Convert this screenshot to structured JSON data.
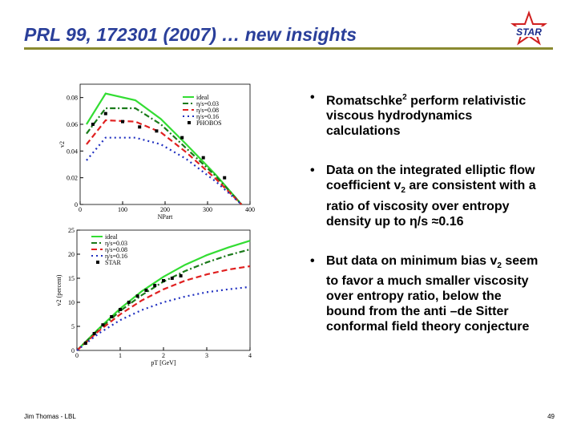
{
  "header": {
    "title": "PRL 99, 172301 (2007) … new insights",
    "logo": "STAR"
  },
  "bullets": [
    [
      "Romatschke",
      "2",
      " perform relativistic viscous hydrodynamics calculations"
    ],
    [
      "Data on the integrated elliptic flow coefficient v",
      "2",
      " are consistent with a ratio of viscosity over entropy density up to η/s ≈0.16"
    ],
    [
      "But data on minimum bias v",
      "2",
      " seem to favor a much smaller viscosity over entropy ratio, below the bound from the anti –de Sitter conformal field theory conjecture"
    ]
  ],
  "footer": {
    "author": "Jim Thomas - LBL",
    "page": "49"
  },
  "chart_data": [
    {
      "type": "line",
      "xlabel": "NPart",
      "ylabel": "v2",
      "x": [
        15,
        60,
        130,
        190,
        250,
        320,
        380
      ],
      "xlim": [
        0,
        400
      ],
      "ylim": [
        0,
        0.09
      ],
      "xticks": [
        0,
        100,
        200,
        300,
        400
      ],
      "yticks": [
        0,
        0.02,
        0.04,
        0.06,
        0.08
      ],
      "series": [
        {
          "name": "ideal",
          "color": "#33dd33",
          "style": "solid",
          "values": [
            0.06,
            0.083,
            0.078,
            0.064,
            0.045,
            0.022,
            0
          ]
        },
        {
          "name": "η/s=0.03",
          "color": "#1a7a1a",
          "style": "dashdot",
          "values": [
            0.053,
            0.072,
            0.072,
            0.06,
            0.042,
            0.021,
            0
          ]
        },
        {
          "name": "η/s=0.08",
          "color": "#e02020",
          "style": "dashed",
          "values": [
            0.045,
            0.063,
            0.062,
            0.054,
            0.039,
            0.019,
            0
          ]
        },
        {
          "name": "η/s=0.16",
          "color": "#2030c0",
          "style": "dotted",
          "values": [
            0.033,
            0.05,
            0.05,
            0.045,
            0.034,
            0.017,
            0
          ]
        },
        {
          "name": "PHOBOS",
          "color": "#000000",
          "style": "points",
          "x": [
            30,
            60,
            100,
            140,
            180,
            240,
            290,
            340
          ],
          "values": [
            0.06,
            0.068,
            0.062,
            0.058,
            0.055,
            0.05,
            0.035,
            0.02
          ]
        }
      ]
    },
    {
      "type": "line",
      "xlabel": "pT [GeV]",
      "ylabel": "v2 (percent)",
      "x": [
        0,
        0.5,
        1,
        1.5,
        2,
        2.5,
        3,
        3.5,
        4
      ],
      "xlim": [
        0,
        4
      ],
      "ylim": [
        0,
        25
      ],
      "xticks": [
        0,
        1,
        2,
        3,
        4
      ],
      "yticks": [
        0,
        5,
        10,
        15,
        20,
        25
      ],
      "series": [
        {
          "name": "ideal",
          "color": "#33dd33",
          "style": "solid",
          "values": [
            0,
            4.5,
            8.7,
            12.3,
            15.3,
            17.8,
            19.8,
            21.4,
            22.8
          ]
        },
        {
          "name": "η/s=0.03",
          "color": "#1a7a1a",
          "style": "dashdot",
          "values": [
            0,
            4.3,
            8.2,
            11.5,
            14.3,
            16.5,
            18.3,
            19.8,
            21
          ]
        },
        {
          "name": "η/s=0.08",
          "color": "#e02020",
          "style": "dashed",
          "values": [
            0,
            4,
            7.5,
            10.4,
            12.7,
            14.5,
            15.8,
            16.8,
            17.5
          ]
        },
        {
          "name": "η/s=0.16",
          "color": "#2030c0",
          "style": "dotted",
          "values": [
            0,
            3.5,
            6.3,
            8.4,
            10,
            11.2,
            12.1,
            12.7,
            13.2
          ]
        },
        {
          "name": "STAR",
          "color": "#000000",
          "style": "points",
          "x": [
            0.2,
            0.4,
            0.6,
            0.8,
            1,
            1.2,
            1.4,
            1.6,
            1.8,
            2,
            2.2,
            2.4
          ],
          "values": [
            1.5,
            3.5,
            5.3,
            7,
            8.5,
            10,
            11.3,
            12.5,
            13.5,
            14.5,
            15,
            15.5
          ]
        }
      ]
    }
  ]
}
